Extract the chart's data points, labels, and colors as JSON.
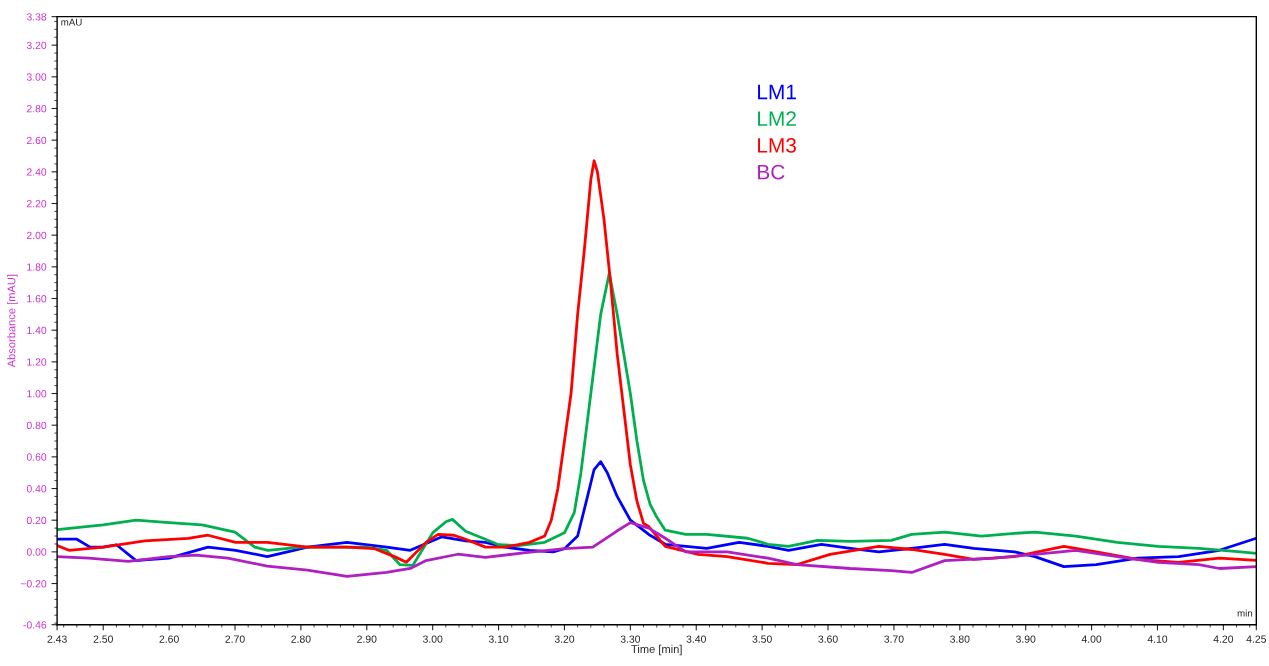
{
  "chart_data": {
    "type": "line",
    "xlabel": "Time [min]",
    "ylabel": "Absorbance [mAU]",
    "annotations": [
      "mAU",
      "min"
    ],
    "xlim": [
      2.43,
      4.25
    ],
    "ylim": [
      -0.46,
      3.38
    ],
    "xticks": [
      2.43,
      {
        "value": 2.5,
        "label": "2.50"
      },
      {
        "value": 2.6,
        "label": "2.60"
      },
      {
        "value": 2.7,
        "label": "2.70"
      },
      {
        "value": 2.8,
        "label": "2.80"
      },
      {
        "value": 2.9,
        "label": "2.90"
      },
      {
        "value": 3.0,
        "label": "3.00"
      },
      {
        "value": 3.1,
        "label": "3.10"
      },
      {
        "value": 3.2,
        "label": "3.20"
      },
      {
        "value": 3.3,
        "label": "3.30"
      },
      {
        "value": 3.4,
        "label": "3.40"
      },
      {
        "value": 3.5,
        "label": "3.50"
      },
      {
        "value": 3.6,
        "label": "3.60"
      },
      {
        "value": 3.7,
        "label": "3.70"
      },
      {
        "value": 3.8,
        "label": "3.80"
      },
      {
        "value": 3.9,
        "label": "3.90"
      },
      {
        "value": 4.0,
        "label": "4.00"
      },
      {
        "value": 4.1,
        "label": "4.10"
      },
      {
        "value": 4.2,
        "label": "4.20"
      },
      4.25
    ],
    "yticks": [
      -0.46,
      {
        "value": -0.2,
        "label": "−0.20"
      },
      {
        "value": 0,
        "label": "0.00"
      },
      {
        "value": 0.2,
        "label": "0.20"
      },
      {
        "value": 0.4,
        "label": "0.40"
      },
      {
        "value": 0.6,
        "label": "0.60"
      },
      {
        "value": 0.8,
        "label": "0.80"
      },
      {
        "value": 1.0,
        "label": "1.00"
      },
      {
        "value": 1.2,
        "label": "1.20"
      },
      {
        "value": 1.4,
        "label": "1.40"
      },
      {
        "value": 1.6,
        "label": "1.60"
      },
      {
        "value": 1.8,
        "label": "1.80"
      },
      {
        "value": 2.0,
        "label": "2.00"
      },
      {
        "value": 2.2,
        "label": "2.20"
      },
      {
        "value": 2.4,
        "label": "2.40"
      },
      {
        "value": 2.6,
        "label": "2.60"
      },
      {
        "value": 2.8,
        "label": "2.80"
      },
      {
        "value": 3.0,
        "label": "3.00"
      },
      {
        "value": 3.2,
        "label": "3.20"
      },
      3.38
    ],
    "grid": false,
    "legend": "top",
    "marker": "none",
    "line_style": "solid",
    "series": [
      {
        "name": "LM1",
        "color": "#0000ff",
        "x": [
          2.43,
          2.46,
          2.48,
          2.5,
          2.52,
          2.55,
          2.563,
          2.6,
          2.659,
          2.701,
          2.749,
          2.81,
          2.87,
          2.93,
          2.966,
          3.014,
          3.05,
          3.08,
          3.11,
          3.147,
          3.183,
          3.2,
          3.22,
          3.235,
          3.245,
          3.255,
          3.265,
          3.28,
          3.3,
          3.328,
          3.353,
          3.416,
          3.465,
          3.509,
          3.54,
          3.59,
          3.634,
          3.677,
          3.727,
          3.777,
          3.821,
          3.883,
          3.914,
          3.958,
          4.007,
          4.07,
          4.132,
          4.194,
          4.25
        ],
        "values": [
          0.08,
          0.08,
          0.03,
          0.03,
          0.045,
          -0.055,
          -0.05,
          -0.04,
          0.03,
          0.01,
          -0.03,
          0.03,
          0.06,
          0.03,
          0.01,
          0.095,
          0.07,
          0.06,
          0.03,
          0.01,
          0.0,
          0.02,
          0.1,
          0.35,
          0.52,
          0.57,
          0.5,
          0.35,
          0.2,
          0.11,
          0.048,
          0.022,
          0.06,
          0.035,
          0.01,
          0.048,
          0.022,
          0.0,
          0.022,
          0.048,
          0.022,
          0.0,
          -0.03,
          -0.093,
          -0.08,
          -0.04,
          -0.03,
          0.01,
          0.086
        ]
      },
      {
        "name": "LM2",
        "color": "#00b050",
        "x": [
          2.43,
          2.5,
          2.55,
          2.6,
          2.65,
          2.7,
          2.73,
          2.75,
          2.8,
          2.85,
          2.9,
          2.93,
          2.95,
          2.97,
          3.0,
          3.02,
          3.03,
          3.05,
          3.08,
          3.1,
          3.13,
          3.17,
          3.2,
          3.215,
          3.225,
          3.24,
          3.255,
          3.268,
          3.28,
          3.29,
          3.3,
          3.31,
          3.32,
          3.33,
          3.34,
          3.353,
          3.384,
          3.416,
          3.478,
          3.509,
          3.54,
          3.584,
          3.634,
          3.696,
          3.727,
          3.777,
          3.833,
          3.883,
          3.914,
          3.976,
          4.039,
          4.101,
          4.163,
          4.226,
          4.25
        ],
        "values": [
          0.14,
          0.17,
          0.2,
          0.185,
          0.17,
          0.125,
          0.03,
          0.01,
          0.03,
          0.03,
          0.03,
          0.01,
          -0.08,
          -0.085,
          0.12,
          0.19,
          0.205,
          0.13,
          0.08,
          0.045,
          0.04,
          0.06,
          0.12,
          0.25,
          0.5,
          1.0,
          1.5,
          1.76,
          1.5,
          1.25,
          1.0,
          0.7,
          0.45,
          0.3,
          0.22,
          0.137,
          0.11,
          0.11,
          0.086,
          0.048,
          0.035,
          0.073,
          0.066,
          0.073,
          0.11,
          0.125,
          0.1,
          0.117,
          0.125,
          0.1,
          0.06,
          0.035,
          0.022,
          0.0,
          -0.01
        ]
      },
      {
        "name": "LM3",
        "color": "#ff0000",
        "x": [
          2.43,
          2.448,
          2.5,
          2.563,
          2.629,
          2.659,
          2.701,
          2.749,
          2.81,
          2.87,
          2.912,
          2.942,
          2.96,
          2.99,
          3.008,
          3.032,
          3.05,
          3.08,
          3.11,
          3.147,
          3.17,
          3.18,
          3.19,
          3.2,
          3.21,
          3.22,
          3.23,
          3.24,
          3.245,
          3.25,
          3.26,
          3.27,
          3.28,
          3.29,
          3.3,
          3.31,
          3.32,
          3.328,
          3.353,
          3.403,
          3.447,
          3.509,
          3.553,
          3.603,
          3.677,
          3.727,
          3.777,
          3.821,
          3.883,
          3.958,
          4.007,
          4.07,
          4.132,
          4.194,
          4.25
        ],
        "values": [
          0.04,
          0.01,
          0.03,
          0.07,
          0.085,
          0.105,
          0.06,
          0.06,
          0.03,
          0.03,
          0.02,
          -0.03,
          -0.065,
          0.06,
          0.11,
          0.105,
          0.08,
          0.03,
          0.03,
          0.06,
          0.1,
          0.2,
          0.4,
          0.7,
          1.0,
          1.5,
          1.9,
          2.35,
          2.47,
          2.4,
          2.1,
          1.7,
          1.25,
          0.9,
          0.55,
          0.32,
          0.18,
          0.16,
          0.035,
          -0.016,
          -0.03,
          -0.072,
          -0.08,
          -0.016,
          0.035,
          0.015,
          -0.016,
          -0.047,
          -0.03,
          0.035,
          0.0,
          -0.047,
          -0.067,
          -0.04,
          -0.054
        ]
      },
      {
        "name": "BC",
        "color": "#b020c0",
        "x": [
          2.43,
          2.478,
          2.538,
          2.599,
          2.641,
          2.689,
          2.749,
          2.81,
          2.87,
          2.93,
          2.966,
          2.99,
          3.038,
          3.08,
          3.141,
          3.201,
          3.243,
          3.279,
          3.3,
          3.328,
          3.353,
          3.384,
          3.447,
          3.509,
          3.553,
          3.634,
          3.696,
          3.727,
          3.777,
          3.852,
          3.914,
          3.976,
          4.039,
          4.101,
          4.163,
          4.194,
          4.25
        ],
        "values": [
          -0.03,
          -0.04,
          -0.06,
          -0.03,
          -0.02,
          -0.04,
          -0.09,
          -0.115,
          -0.155,
          -0.13,
          -0.105,
          -0.055,
          -0.015,
          -0.035,
          -0.005,
          0.02,
          0.03,
          0.13,
          0.185,
          0.15,
          0.086,
          0.0,
          0.0,
          -0.04,
          -0.08,
          -0.105,
          -0.118,
          -0.13,
          -0.055,
          -0.04,
          -0.016,
          0.01,
          -0.03,
          -0.067,
          -0.08,
          -0.105,
          -0.093
        ]
      }
    ]
  }
}
